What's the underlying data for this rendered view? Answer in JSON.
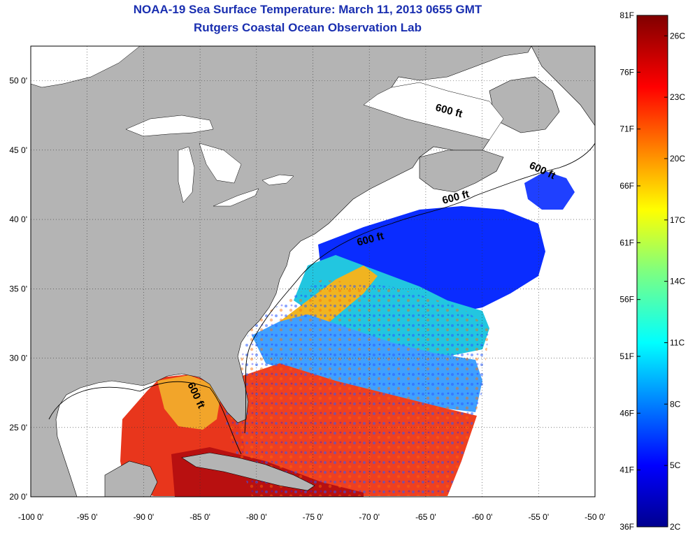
{
  "title_line1": "NOAA-19 Sea Surface Temperature:  March 11, 2013 0655 GMT",
  "title_line2": "Rutgers Coastal Ocean Observation Lab",
  "map": {
    "lon_range": [
      -100,
      -50
    ],
    "lat_range": [
      20,
      52.5
    ],
    "lon_ticks": [
      "-100 0'",
      "-95 0'",
      "-90 0'",
      "-85 0'",
      "-80 0'",
      "-75 0'",
      "-70 0'",
      "-65 0'",
      "-60 0'",
      "-55 0'",
      "-50 0'"
    ],
    "lat_ticks": [
      "20 0'",
      "25 0'",
      "30 0'",
      "35 0'",
      "40 0'",
      "45 0'",
      "50 0'"
    ],
    "land_color": "#b4b4b4",
    "nodata_color": "#ffffff",
    "contour_label": "600 ft",
    "grid": "dotted"
  },
  "colorbar": {
    "fahrenheit_labels": [
      "81F",
      "76F",
      "71F",
      "66F",
      "61F",
      "56F",
      "51F",
      "46F",
      "41F",
      "36F"
    ],
    "celsius_labels": [
      "26C",
      "23C",
      "20C",
      "17C",
      "14C",
      "11C",
      "8C",
      "5C",
      "2C"
    ],
    "colormap": "jet",
    "range_f": [
      36,
      81
    ],
    "range_c": [
      2,
      27
    ]
  }
}
